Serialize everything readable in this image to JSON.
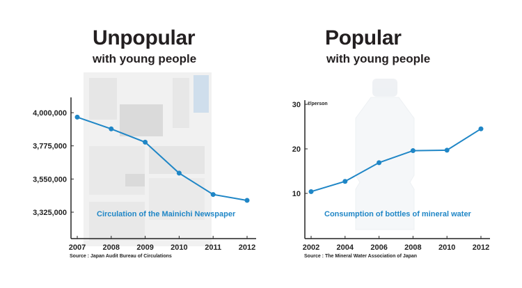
{
  "left": {
    "title": "Unpopular",
    "subtitle": "with young people",
    "source": "Source : Japan Audit Bureau of Circulations",
    "chart_data": {
      "type": "line",
      "caption": "Circulation of the Mainichi Newspaper",
      "x": [
        2007,
        2008,
        2009,
        2010,
        2011,
        2012
      ],
      "x_tick_labels": [
        "2007",
        "2008",
        "2009",
        "2010",
        "2011",
        "2012"
      ],
      "y": [
        3970000,
        3890000,
        3800000,
        3590000,
        3445000,
        3405000
      ],
      "y_ticks": [
        3325000,
        3550000,
        3775000,
        4000000
      ],
      "y_tick_labels": [
        "3,325,000",
        "3,550,000",
        "3,775,000",
        "4,000,000"
      ],
      "ylim": [
        3325000,
        4000000
      ],
      "color": "#1f86c6",
      "background_image": "newspaper"
    }
  },
  "right": {
    "title": "Popular",
    "subtitle": "with young people",
    "source": "Source : The Mineral Water Association of Japan",
    "chart_data": {
      "type": "line",
      "caption": "Consumption of bottles of mineral water",
      "unit_label": "ℓ/person",
      "x": [
        2002,
        2004,
        2006,
        2008,
        2010,
        2012
      ],
      "x_tick_labels": [
        "2002",
        "2004",
        "2006",
        "2008",
        "2010",
        "2012"
      ],
      "y": [
        10.4,
        12.7,
        16.9,
        19.6,
        19.7,
        24.5
      ],
      "y_ticks": [
        10,
        20,
        30
      ],
      "y_tick_labels": [
        "10",
        "20",
        "30"
      ],
      "ylim": [
        10,
        30
      ],
      "color": "#1f86c6",
      "background_image": "water-bottle"
    }
  }
}
